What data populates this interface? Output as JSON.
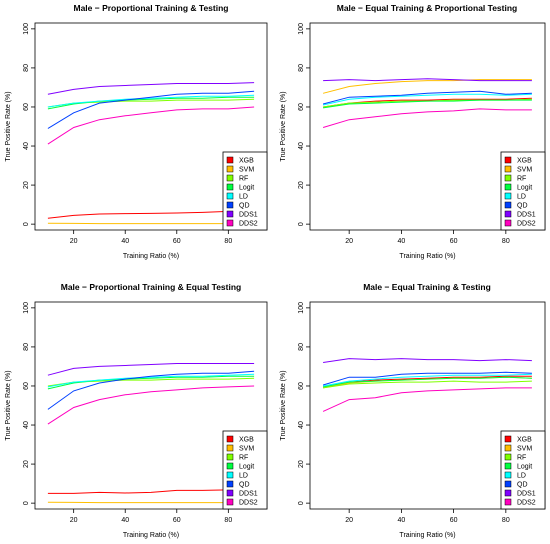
{
  "series_names": [
    "XGB",
    "SVM",
    "RF",
    "Logit",
    "LD",
    "QD",
    "DDS1",
    "DDS2"
  ],
  "colors": {
    "XGB": "#ff0000",
    "SVM": "#ffbf00",
    "RF": "#80ff00",
    "Logit": "#00ff40",
    "LD": "#00ffff",
    "QD": "#0040ff",
    "DDS1": "#8000ff",
    "DDS2": "#ff00bf"
  },
  "chart_data": [
    {
      "type": "line",
      "title": "Male − Proportional Training & Testing",
      "xlabel": "Training Ratio (%)",
      "ylabel": "True Positive Rate (%)",
      "xlim": [
        5,
        95
      ],
      "ylim": [
        -3,
        103
      ],
      "xticks": [
        "20",
        "40",
        "60",
        "80"
      ],
      "yticks": [
        "0",
        "20",
        "40",
        "60",
        "80",
        "100"
      ],
      "legend_position": "bottom-right",
      "x": [
        10,
        20,
        30,
        40,
        50,
        60,
        70,
        80,
        90
      ],
      "series": [
        {
          "name": "XGB",
          "values": [
            3,
            4.5,
            5.2,
            5.4,
            5.5,
            5.7,
            6,
            6.5,
            7
          ]
        },
        {
          "name": "SVM",
          "values": [
            0.5,
            0.4,
            0.3,
            0.3,
            0.3,
            0.3,
            0.3,
            0.3,
            0.3
          ]
        },
        {
          "name": "RF",
          "values": [
            60,
            62,
            62.5,
            63,
            63,
            63.5,
            63.5,
            63.5,
            64
          ]
        },
        {
          "name": "Logit",
          "values": [
            59,
            61.5,
            63,
            63.5,
            64,
            64.5,
            64.5,
            65,
            65
          ]
        },
        {
          "name": "LD",
          "values": [
            60,
            62,
            63,
            64,
            64.5,
            65,
            65.5,
            65.5,
            66
          ]
        },
        {
          "name": "QD",
          "values": [
            49,
            57,
            62,
            63.5,
            65,
            66.5,
            67,
            67,
            68
          ]
        },
        {
          "name": "DDS1",
          "values": [
            66.5,
            69,
            70.5,
            71,
            71.5,
            72,
            72,
            72,
            72.5
          ]
        },
        {
          "name": "DDS2",
          "values": [
            41,
            49.5,
            53.5,
            55.5,
            57,
            58.5,
            59,
            59,
            60
          ]
        }
      ]
    },
    {
      "type": "line",
      "title": "Male − Equal Training & Proportional Testing",
      "xlabel": "Training Ratio (%)",
      "ylabel": "True Positive Rate (%)",
      "xlim": [
        5,
        95
      ],
      "ylim": [
        -3,
        103
      ],
      "xticks": [
        "20",
        "40",
        "60",
        "80"
      ],
      "yticks": [
        "0",
        "20",
        "40",
        "60",
        "80",
        "100"
      ],
      "legend_position": "bottom-right",
      "x": [
        10,
        20,
        30,
        40,
        50,
        60,
        70,
        80,
        90
      ],
      "series": [
        {
          "name": "XGB",
          "values": [
            60,
            62,
            63,
            63.5,
            63.5,
            64,
            64,
            64,
            64.5
          ]
        },
        {
          "name": "SVM",
          "values": [
            67,
            70.5,
            72,
            73,
            73.5,
            73.5,
            74,
            74,
            74
          ]
        },
        {
          "name": "RF",
          "values": [
            60,
            62,
            62.5,
            63,
            63,
            63.5,
            63.5,
            63.5,
            64
          ]
        },
        {
          "name": "Logit",
          "values": [
            59.5,
            61.5,
            62,
            62.5,
            63,
            63,
            63.5,
            63.5,
            63.5
          ]
        },
        {
          "name": "LD",
          "values": [
            61,
            64,
            65,
            65.5,
            66,
            66.5,
            66.5,
            66,
            66.5
          ]
        },
        {
          "name": "QD",
          "values": [
            61.5,
            65,
            65.5,
            66,
            67,
            67.5,
            68,
            66.5,
            67
          ]
        },
        {
          "name": "DDS1",
          "values": [
            73.5,
            74,
            73.5,
            74,
            74.5,
            74,
            73.5,
            73.5,
            73.5
          ]
        },
        {
          "name": "DDS2",
          "values": [
            49.5,
            53.5,
            55,
            56.5,
            57.5,
            58,
            59,
            58.5,
            58.5
          ]
        }
      ]
    },
    {
      "type": "line",
      "title": "Male − Proportional Training & Equal Testing",
      "xlabel": "Training Ratio (%)",
      "ylabel": "True Positive Rate (%)",
      "xlim": [
        5,
        95
      ],
      "ylim": [
        -3,
        103
      ],
      "xticks": [
        "20",
        "40",
        "60",
        "80"
      ],
      "yticks": [
        "0",
        "20",
        "40",
        "60",
        "80",
        "100"
      ],
      "legend_position": "bottom-right",
      "x": [
        10,
        20,
        30,
        40,
        50,
        60,
        70,
        80,
        90
      ],
      "series": [
        {
          "name": "XGB",
          "values": [
            5,
            5,
            5.5,
            5.2,
            5.5,
            6.5,
            6.5,
            6.8,
            7
          ]
        },
        {
          "name": "SVM",
          "values": [
            0.5,
            0.4,
            0.3,
            0.3,
            0.3,
            0.3,
            0.3,
            0.3,
            0.3
          ]
        },
        {
          "name": "RF",
          "values": [
            60,
            62,
            62.5,
            63,
            63,
            63.5,
            63.5,
            63.5,
            64
          ]
        },
        {
          "name": "Logit",
          "values": [
            58.5,
            61.5,
            63,
            63.5,
            64,
            64.5,
            64.5,
            65,
            65
          ]
        },
        {
          "name": "LD",
          "values": [
            59.5,
            62,
            63,
            64,
            64.5,
            65,
            65,
            65.5,
            66
          ]
        },
        {
          "name": "QD",
          "values": [
            48,
            57.5,
            61.5,
            63.5,
            65,
            66,
            66.5,
            66.5,
            67.5
          ]
        },
        {
          "name": "DDS1",
          "values": [
            65.5,
            69,
            70,
            70.5,
            71,
            71.5,
            71.5,
            71.5,
            71.5
          ]
        },
        {
          "name": "DDS2",
          "values": [
            40.5,
            49,
            53,
            55.5,
            57,
            58,
            59,
            59.5,
            60
          ]
        }
      ]
    },
    {
      "type": "line",
      "title": "Male − Equal Training & Testing",
      "xlabel": "Training Ratio (%)",
      "ylabel": "True Positive Rate (%)",
      "xlim": [
        5,
        95
      ],
      "ylim": [
        -3,
        103
      ],
      "xticks": [
        "20",
        "40",
        "60",
        "80"
      ],
      "yticks": [
        "0",
        "20",
        "40",
        "60",
        "80",
        "100"
      ],
      "legend_position": "bottom-right",
      "x": [
        10,
        20,
        30,
        40,
        50,
        60,
        70,
        80,
        90
      ],
      "series": [
        {
          "name": "XGB",
          "values": [
            59.5,
            62,
            63,
            63.5,
            64,
            64.5,
            64.5,
            65,
            65
          ]
        },
        {
          "name": "SVM",
          "values": [
            59,
            61.5,
            62.5,
            63,
            63.5,
            64,
            64,
            64.5,
            64
          ]
        },
        {
          "name": "RF",
          "values": [
            59,
            61,
            61.5,
            62,
            62,
            62.5,
            62,
            62,
            62.5
          ]
        },
        {
          "name": "Logit",
          "values": [
            59.5,
            62,
            62.5,
            63,
            63.5,
            64,
            64,
            64.5,
            64
          ]
        },
        {
          "name": "LD",
          "values": [
            60,
            62.5,
            63.5,
            64.5,
            65,
            65.5,
            65.5,
            65.5,
            66
          ]
        },
        {
          "name": "QD",
          "values": [
            60.5,
            64.5,
            64.5,
            66,
            66.5,
            66.5,
            66.5,
            67,
            66.5
          ]
        },
        {
          "name": "DDS1",
          "values": [
            72,
            74,
            73.5,
            74,
            73.5,
            73.5,
            73,
            73.5,
            73
          ]
        },
        {
          "name": "DDS2",
          "values": [
            47,
            53,
            54,
            56.5,
            57.5,
            58,
            58.5,
            59,
            59
          ]
        }
      ]
    }
  ]
}
